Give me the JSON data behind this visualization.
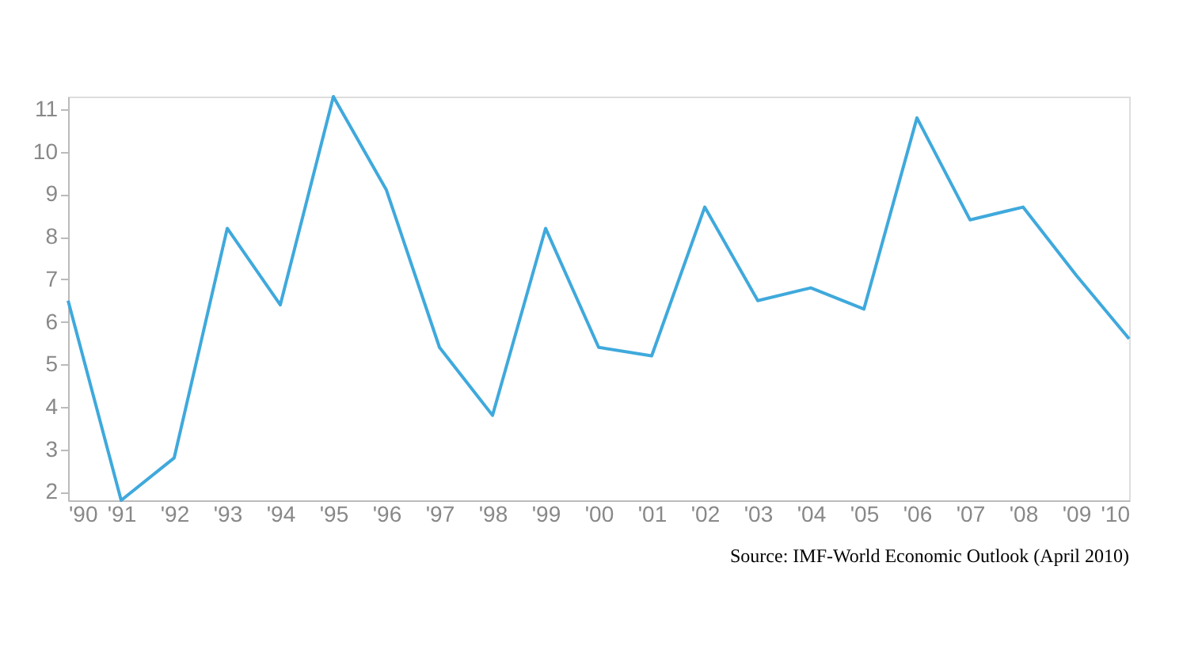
{
  "chart_data": {
    "type": "line",
    "categories": [
      "'90",
      "'91",
      "'92",
      "'93",
      "'94",
      "'95",
      "'96",
      "'97",
      "'98",
      "'99",
      "'00",
      "'01",
      "'02",
      "'03",
      "'04",
      "'05",
      "'06",
      "'07",
      "'08",
      "'09",
      "'10"
    ],
    "series": [
      {
        "color": "#3fa9dc",
        "values": [
          6.5,
          1.8,
          2.8,
          8.2,
          6.4,
          11.3,
          9.1,
          5.4,
          3.8,
          8.2,
          5.4,
          5.2,
          8.7,
          6.5,
          6.8,
          6.3,
          10.8,
          8.4,
          8.7,
          7.1,
          5.6
        ]
      }
    ],
    "ylim": [
      1.8,
      11.3
    ],
    "yticks": [
      2,
      3,
      4,
      5,
      6,
      7,
      8,
      9,
      10,
      11
    ],
    "grid": false,
    "marker": "none",
    "line_style": "solid",
    "annotations": [
      "Source: IMF-World Economic Outlook (April 2010)"
    ]
  }
}
